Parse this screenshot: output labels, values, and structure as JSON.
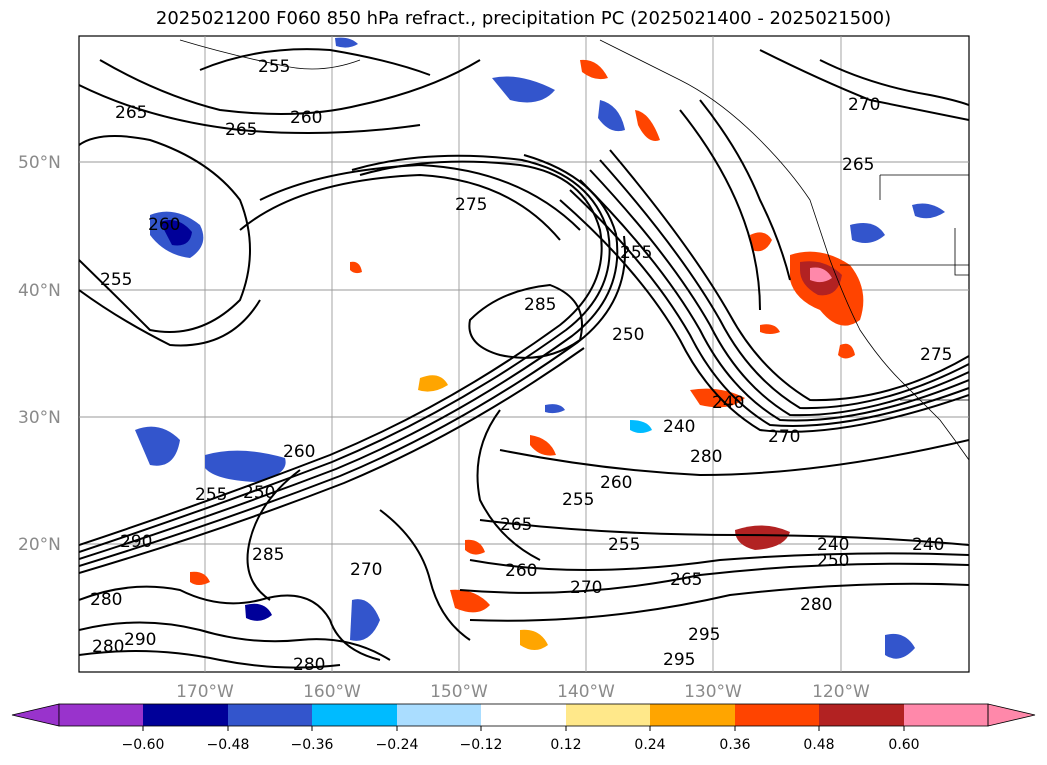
{
  "title": "2025021200 F060 850 hPa refract., precipitation PC (2025021400 - 2025021500)",
  "lat_labels": [
    "50°N",
    "40°N",
    "30°N",
    "20°N"
  ],
  "lon_labels": [
    "170°W",
    "160°W",
    "150°W",
    "140°W",
    "130°W",
    "120°W"
  ],
  "contour_labels": [
    "255",
    "260",
    "265",
    "265",
    "260",
    "255",
    "275",
    "255",
    "285",
    "250",
    "240",
    "280",
    "270",
    "240",
    "260",
    "255",
    "265",
    "260",
    "255",
    "250",
    "260",
    "290",
    "280",
    "280",
    "290",
    "285",
    "270",
    "295",
    "295",
    "280",
    "270",
    "255",
    "240",
    "250",
    "240",
    "280",
    "265",
    "275",
    "270",
    "265"
  ],
  "colorbar": {
    "colors": [
      "#9933cc",
      "#9933cc",
      "#000099",
      "#3355cc",
      "#00bbff",
      "#aaddff",
      "#ffffff",
      "#ffe88a",
      "#ffa500",
      "#ff4400",
      "#b22222",
      "#ff88aa",
      "#ff88aa"
    ],
    "ticks": [
      "−0.60",
      "−0.48",
      "−0.36",
      "−0.24",
      "−0.12",
      "0.12",
      "0.24",
      "0.36",
      "0.48",
      "0.60"
    ]
  }
}
